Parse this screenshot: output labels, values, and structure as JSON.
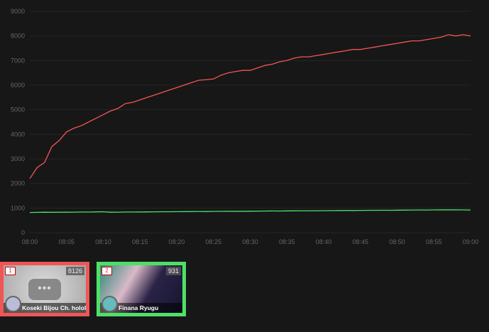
{
  "chart_data": {
    "type": "line",
    "title": "",
    "xlabel": "",
    "ylabel": "",
    "ylim": [
      0,
      9000
    ],
    "yticks": [
      "0",
      "1000",
      "2000",
      "3000",
      "4000",
      "5000",
      "6000",
      "7000",
      "8000",
      "9000"
    ],
    "xticks": [
      "08:00",
      "08:05",
      "08:10",
      "08:15",
      "08:20",
      "08:25",
      "08:30",
      "08:35",
      "08:40",
      "08:45",
      "08:50",
      "08:55",
      "09:00"
    ],
    "grid": true,
    "x_minutes_from_first_tick": "per-minute samples from 08:00 to 09:00",
    "series": [
      {
        "color": "#f05656",
        "values": [
          2200,
          2650,
          2850,
          3500,
          3750,
          4100,
          4250,
          4350,
          4500,
          4650,
          4800,
          4950,
          5050,
          5250,
          5300,
          5400,
          5500,
          5600,
          5700,
          5800,
          5900,
          6000,
          6100,
          6200,
          6220,
          6250,
          6400,
          6500,
          6550,
          6600,
          6600,
          6700,
          6800,
          6850,
          6950,
          7000,
          7100,
          7150,
          7150,
          7200,
          7250,
          7300,
          7350,
          7400,
          7450,
          7450,
          7500,
          7550,
          7600,
          7650,
          7700,
          7750,
          7800,
          7800,
          7850,
          7900,
          7950,
          8050,
          8000,
          8050,
          8000
        ]
      },
      {
        "color": "#4ee066",
        "values": [
          820,
          825,
          830,
          828,
          832,
          830,
          835,
          840,
          838,
          845,
          850,
          830,
          835,
          838,
          840,
          842,
          845,
          848,
          850,
          852,
          855,
          858,
          860,
          862,
          860,
          865,
          868,
          870,
          872,
          870,
          875,
          878,
          880,
          882,
          880,
          885,
          888,
          890,
          892,
          890,
          895,
          898,
          900,
          902,
          900,
          905,
          908,
          910,
          912,
          910,
          915,
          918,
          920,
          922,
          920,
          925,
          928,
          930,
          928,
          925,
          920
        ]
      }
    ]
  },
  "cards": [
    {
      "rank": "1",
      "count": "8126",
      "name": "Koseki Bijou Ch. hololive-",
      "color": "#f05656"
    },
    {
      "rank": "2",
      "count": "931",
      "name": "Finana Ryugu",
      "color": "#4ee066"
    }
  ]
}
